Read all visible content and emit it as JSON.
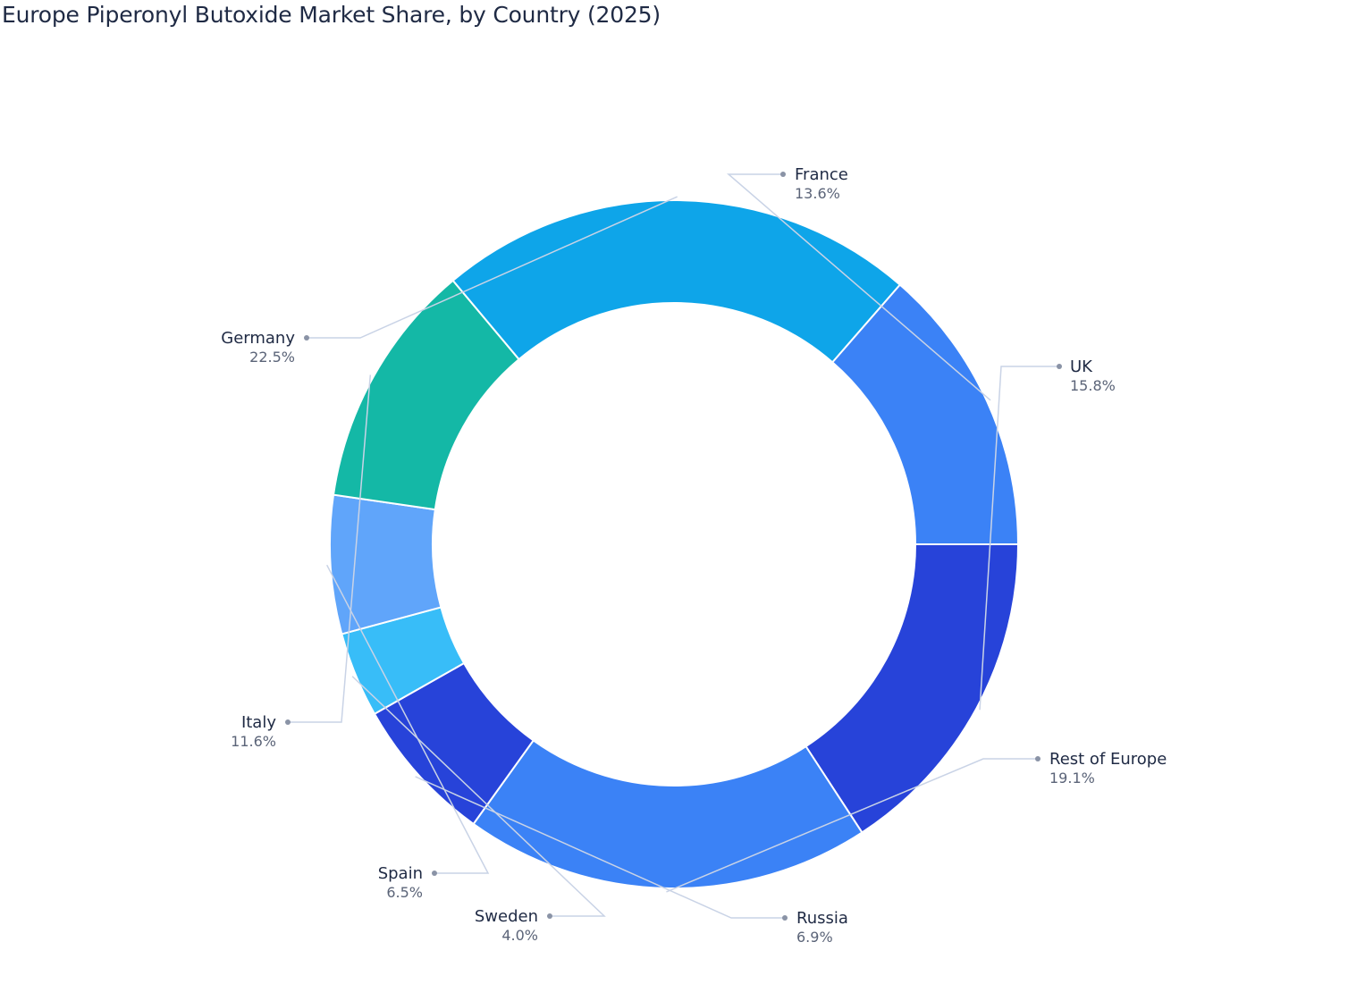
{
  "chart_data": {
    "type": "pie",
    "title": "Europe Piperonyl Butoxide Market Share, by Country (2025)",
    "donut": true,
    "unit": "%",
    "slices": [
      {
        "label": "UK",
        "value": 15.8,
        "display": "15.8%",
        "color": "#2743d9"
      },
      {
        "label": "Rest of Europe",
        "value": 19.1,
        "display": "19.1%",
        "color": "#3b82f6"
      },
      {
        "label": "Russia",
        "value": 6.9,
        "display": "6.9%",
        "color": "#2743d9"
      },
      {
        "label": "Sweden",
        "value": 4.0,
        "display": "4.0%",
        "color": "#38bdf8"
      },
      {
        "label": "Spain",
        "value": 6.5,
        "display": "6.5%",
        "color": "#60a5fa"
      },
      {
        "label": "Italy",
        "value": 11.6,
        "display": "11.6%",
        "color": "#14b8a6"
      },
      {
        "label": "Germany",
        "value": 22.5,
        "display": "22.5%",
        "color": "#0ea5e9"
      },
      {
        "label": "France",
        "value": 13.6,
        "display": "13.6%",
        "color": "#3b82f6"
      }
    ]
  },
  "colors": {
    "title": "#1f2a44",
    "label_text": "#1f2a44",
    "value_text": "#5b6478",
    "leader_line": "#c9d3e6",
    "leader_dot": "#8a93a6",
    "slice_border": "#ffffff"
  }
}
